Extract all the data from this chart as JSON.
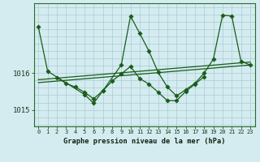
{
  "title": "Graphe pression niveau de la mer (hPa)",
  "bg_color": "#d4ecf0",
  "grid_color": "#aaccd4",
  "line_color": "#1a5c1a",
  "ylim": [
    1014.55,
    1017.9
  ],
  "xlim": [
    -0.5,
    23.5
  ],
  "yticks": [
    1015,
    1016
  ],
  "xticks": [
    0,
    1,
    2,
    3,
    4,
    5,
    6,
    7,
    8,
    9,
    10,
    11,
    12,
    13,
    14,
    15,
    16,
    17,
    18,
    19,
    20,
    21,
    22,
    23
  ],
  "hgrid_values": [
    1014.6,
    1014.8,
    1015.0,
    1015.2,
    1015.4,
    1015.6,
    1015.8,
    1016.0,
    1016.2,
    1016.4,
    1016.6,
    1016.8,
    1017.0,
    1017.2,
    1017.4,
    1017.6,
    1017.8
  ],
  "main_x": [
    0,
    1,
    5,
    6,
    7,
    9,
    10,
    11,
    12,
    13,
    14,
    15,
    16,
    17,
    18,
    19,
    20,
    21,
    22,
    23
  ],
  "main_y": [
    1017.25,
    1016.05,
    1015.42,
    1015.18,
    1015.52,
    1016.22,
    1017.55,
    1017.08,
    1016.6,
    1016.02,
    1015.62,
    1015.38,
    1015.55,
    1015.72,
    1016.0,
    1016.38,
    1017.58,
    1017.55,
    1016.32,
    1016.22
  ],
  "mid_x": [
    2,
    3,
    4,
    5,
    6,
    7,
    8,
    9,
    10,
    11,
    12,
    13,
    14,
    15,
    16,
    17,
    18
  ],
  "mid_y": [
    1015.88,
    1015.72,
    1015.62,
    1015.48,
    1015.3,
    1015.52,
    1015.78,
    1015.98,
    1016.18,
    1015.85,
    1015.7,
    1015.48,
    1015.25,
    1015.25,
    1015.5,
    1015.7,
    1015.9
  ],
  "trend1_x": [
    0,
    23
  ],
  "trend1_y": [
    1015.82,
    1016.3
  ],
  "trend2_x": [
    0,
    23
  ],
  "trend2_y": [
    1015.74,
    1016.22
  ],
  "spine_color": "#2a6b2a",
  "tick_label_color": "#1a3a1a"
}
